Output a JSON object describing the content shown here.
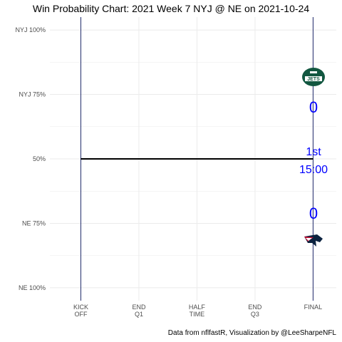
{
  "title": "Win Probability Chart: 2021 Week 7 NYJ @ NE on 2021-10-24",
  "caption": "Data from nflfastR, Visualization by @LeeSharpeNFL",
  "colors": {
    "line": "#000000",
    "vertical_lines": "#1f2a6b",
    "grid": "#ebebeb",
    "score_text": "#0000ff",
    "jets_green": "#125740",
    "patriots_navy": "#0c2340",
    "patriots_red": "#c60c30"
  },
  "chart_data": {
    "type": "line",
    "title": "Win Probability Chart: 2021 Week 7 NYJ @ NE on 2021-10-24",
    "xlabel": "",
    "ylabel": "",
    "x_ticks": [
      {
        "value": 0,
        "label": [
          "KICK",
          "OFF"
        ]
      },
      {
        "value": 15,
        "label": [
          "END",
          "Q1"
        ]
      },
      {
        "value": 30,
        "label": [
          "HALF",
          "TIME"
        ]
      },
      {
        "value": 45,
        "label": [
          "END",
          "Q3"
        ]
      },
      {
        "value": 60,
        "label": [
          "FINAL"
        ]
      }
    ],
    "y_ticks": [
      {
        "value": 1.0,
        "label": "NYJ 100%"
      },
      {
        "value": 0.75,
        "label": "NYJ 75%"
      },
      {
        "value": 0.5,
        "label": "50%"
      },
      {
        "value": 0.25,
        "label": "NE 75%"
      },
      {
        "value": 0.0,
        "label": "NE 100%"
      }
    ],
    "xlim": [
      -8,
      66
    ],
    "ylim": [
      -0.05,
      1.05
    ],
    "grid": true,
    "series": [
      {
        "x": [
          0,
          60
        ],
        "y": [
          0.5,
          0.5
        ]
      }
    ],
    "annotations": {
      "away_team_icon": "jets-logo-icon",
      "away_score": "0",
      "home_team_icon": "patriots-logo-icon",
      "home_score": "0",
      "quarter": "1st",
      "clock": "15:00"
    }
  }
}
